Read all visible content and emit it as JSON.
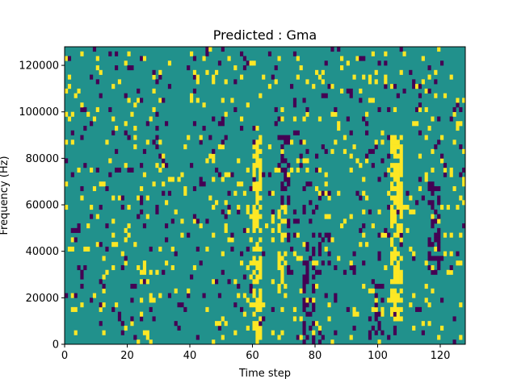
{
  "chart_data": {
    "type": "heatmap",
    "title": "Predicted : Gma",
    "xlabel": "Time step",
    "ylabel": "Frequency (Hz)",
    "xlim": [
      0,
      128
    ],
    "ylim": [
      0,
      128000
    ],
    "x_ticks": [
      0,
      20,
      40,
      60,
      80,
      100,
      120
    ],
    "y_ticks": [
      0,
      20000,
      40000,
      60000,
      80000,
      100000,
      120000
    ],
    "y_tick_labels": [
      "0",
      "20000",
      "40000",
      "60000",
      "80000",
      "100000",
      "120000"
    ],
    "grid": false,
    "legend": "none",
    "rows": 64,
    "cols": 128,
    "colors": {
      "background": "#21918c",
      "high": "#fde725",
      "low": "#440154"
    },
    "value_levels": {
      "low": -1,
      "background": 0,
      "high": 1
    },
    "cell_density": {
      "high": 0.06,
      "low": 0.045
    },
    "high_bands": [
      {
        "x": [
          60,
          63
        ],
        "y": [
          0,
          90000
        ],
        "density": 0.65
      },
      {
        "x": [
          104,
          108
        ],
        "y": [
          10000,
          90000
        ],
        "density": 0.65
      },
      {
        "x": [
          58,
          60
        ],
        "y": [
          10000,
          60000
        ],
        "density": 0.25
      },
      {
        "x": [
          68,
          71
        ],
        "y": [
          20000,
          60000
        ],
        "density": 0.3
      },
      {
        "x": [
          48,
          52
        ],
        "y": [
          6000,
          12000
        ],
        "density": 0.4
      }
    ],
    "low_bands": [
      {
        "x": [
          69,
          72
        ],
        "y": [
          30000,
          90000
        ],
        "density": 0.35
      },
      {
        "x": [
          76,
          80
        ],
        "y": [
          0,
          70000
        ],
        "density": 0.3
      },
      {
        "x": [
          81,
          85
        ],
        "y": [
          30000,
          50000
        ],
        "density": 0.35
      },
      {
        "x": [
          98,
          102
        ],
        "y": [
          4000,
          40000
        ],
        "density": 0.2
      },
      {
        "x": [
          116,
          120
        ],
        "y": [
          30000,
          70000
        ],
        "density": 0.35
      }
    ]
  }
}
